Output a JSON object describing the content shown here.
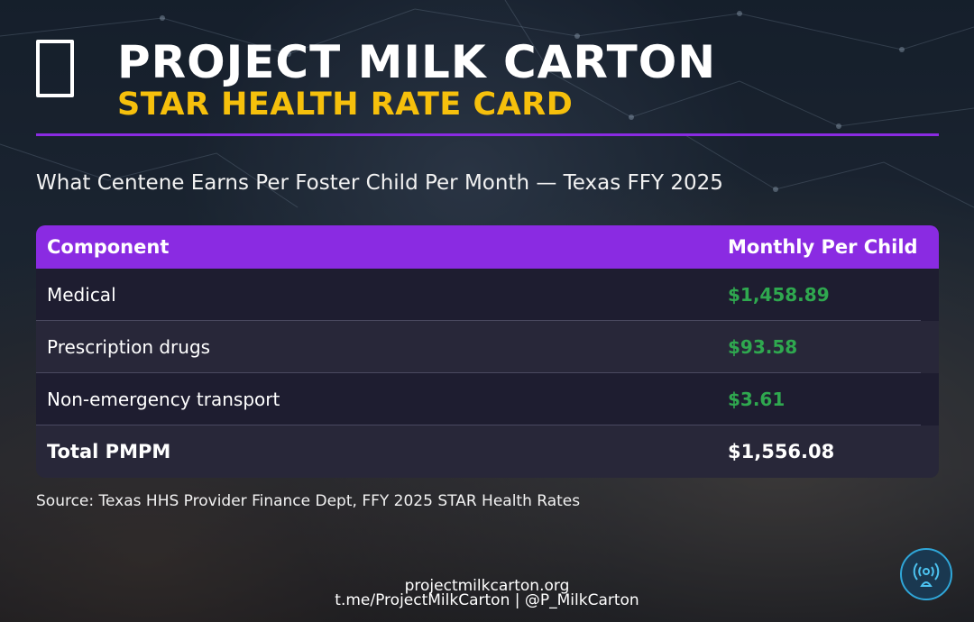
{
  "header": {
    "title": "PROJECT MILK CARTON",
    "subtitle": "STAR HEALTH RATE CARD",
    "icon": "milk-carton-icon"
  },
  "caption": "What Centene Earns Per Foster Child Per Month — Texas FFY 2025",
  "table": {
    "headers": [
      "Component",
      "Monthly Per Child"
    ],
    "rows": [
      {
        "component": "Medical",
        "amount": "$1,458.89"
      },
      {
        "component": "Prescription drugs",
        "amount": "$93.58"
      },
      {
        "component": "Non-emergency transport",
        "amount": "$3.61"
      }
    ],
    "total": {
      "label": "Total PMPM",
      "amount": "$1,556.08"
    }
  },
  "source": "Source: Texas HHS Provider Finance Dept, FFY 2025 STAR Health Rates",
  "footer": {
    "website": "projectmilkcarton.org",
    "social": "t.me/ProjectMilkCarton | @P_MilkCarton",
    "badge_icon": "broadcast-icon"
  },
  "colors": {
    "accent": "#8a2be2",
    "subtitle": "#f6c00c",
    "amount": "#2fa84f"
  }
}
